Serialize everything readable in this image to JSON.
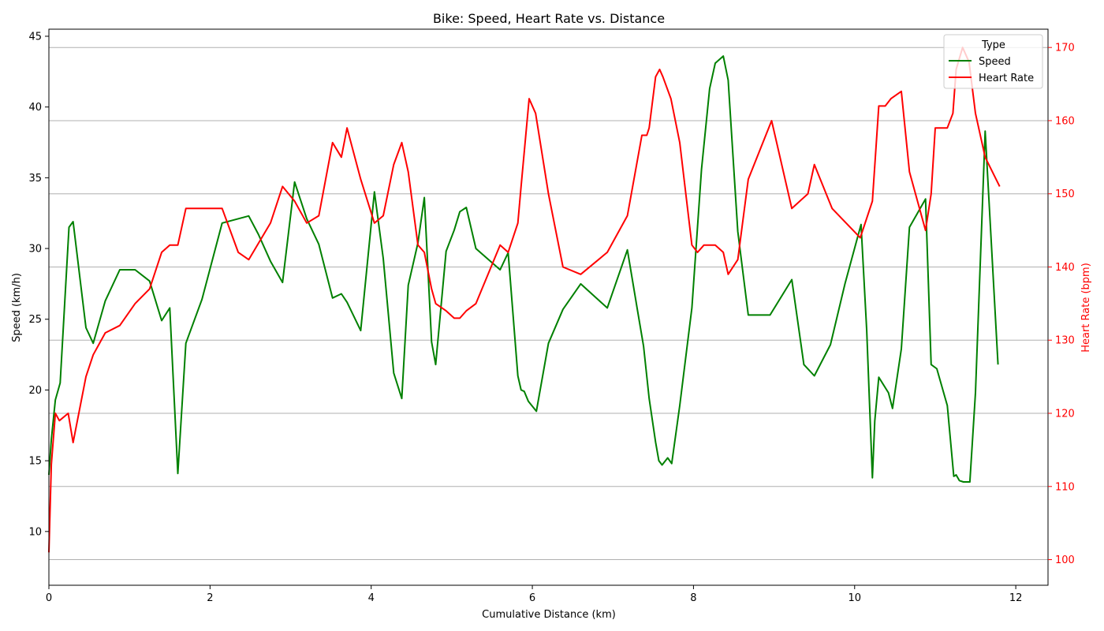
{
  "chart_data": {
    "type": "line",
    "title": "Bike: Speed, Heart Rate vs. Distance",
    "xlabel": "Cumulative Distance (km)",
    "ylabel": "Speed (km/h)",
    "y2label": "Heart Rate (bpm)",
    "xlim": [
      0,
      12.4
    ],
    "ylim": [
      6.2,
      45.5
    ],
    "y2lim": [
      96.5,
      172.5
    ],
    "x_ticks": [
      "0",
      "2",
      "4",
      "6",
      "8",
      "10",
      "12"
    ],
    "y_ticks": [
      "10",
      "15",
      "20",
      "25",
      "30",
      "35",
      "40",
      "45"
    ],
    "y2_ticks": [
      "100",
      "110",
      "120",
      "130",
      "140",
      "150",
      "160",
      "170"
    ],
    "grid": "horizontal lines at heart-rate ticks",
    "legend": {
      "title": "Type",
      "position": "top-right"
    },
    "colors": {
      "speed": "#008000",
      "heart_rate": "#ff0000"
    },
    "series": [
      {
        "name": "Speed",
        "axis": "left",
        "x": [
          0,
          0.03,
          0.08,
          0.14,
          0.25,
          0.3,
          0.46,
          0.55,
          0.7,
          0.88,
          1.07,
          1.25,
          1.4,
          1.5,
          1.6,
          1.7,
          1.9,
          2.15,
          2.48,
          2.6,
          2.75,
          2.9,
          3.05,
          3.2,
          3.35,
          3.52,
          3.63,
          3.7,
          3.87,
          4.04,
          4.15,
          4.28,
          4.38,
          4.46,
          4.58,
          4.66,
          4.75,
          4.8,
          4.93,
          5.03,
          5.1,
          5.18,
          5.3,
          5.6,
          5.7,
          5.82,
          5.86,
          5.9,
          5.95,
          6.05,
          6.2,
          6.38,
          6.6,
          6.93,
          7.18,
          7.3,
          7.38,
          7.45,
          7.53,
          7.57,
          7.61,
          7.68,
          7.73,
          7.83,
          7.98,
          8.1,
          8.2,
          8.27,
          8.37,
          8.43,
          8.55,
          8.68,
          8.95,
          9.22,
          9.37,
          9.5,
          9.7,
          9.88,
          10.08,
          10.15,
          10.22,
          10.25,
          10.3,
          10.42,
          10.47,
          10.58,
          10.68,
          10.88,
          10.95,
          11.02,
          11.15,
          11.23,
          11.26,
          11.3,
          11.35,
          11.43,
          11.5,
          11.62,
          11.78
        ],
        "y": [
          14,
          16.5,
          19.3,
          20.5,
          31.5,
          31.9,
          24.4,
          23.3,
          26.3,
          28.5,
          28.5,
          27.7,
          24.9,
          25.8,
          14.1,
          23.3,
          26.4,
          31.8,
          32.3,
          31,
          29.1,
          27.6,
          34.7,
          32.1,
          30.3,
          26.5,
          26.8,
          26.2,
          24.2,
          34,
          29.3,
          21.2,
          19.4,
          27.4,
          30.4,
          33.6,
          23.4,
          21.8,
          29.8,
          31.3,
          32.6,
          32.9,
          30,
          28.5,
          29.7,
          21,
          20,
          19.9,
          19.2,
          18.5,
          23.3,
          25.7,
          27.5,
          25.8,
          29.9,
          25.8,
          23.1,
          19.4,
          16.3,
          15,
          14.7,
          15.2,
          14.8,
          18.9,
          25.8,
          35.6,
          41.3,
          43.1,
          43.6,
          41.9,
          31.2,
          25.3,
          25.3,
          27.8,
          21.8,
          21,
          23.2,
          27.5,
          31.7,
          24.2,
          13.8,
          17.8,
          20.9,
          19.8,
          18.7,
          22.9,
          31.5,
          33.5,
          21.8,
          21.5,
          18.9,
          13.9,
          14,
          13.6,
          13.5,
          13.5,
          19.8,
          38.3,
          21.8
        ]
      },
      {
        "name": "Heart Rate",
        "axis": "right",
        "x": [
          0,
          0.03,
          0.08,
          0.13,
          0.24,
          0.3,
          0.46,
          0.55,
          0.7,
          0.88,
          1.07,
          1.25,
          1.4,
          1.5,
          1.6,
          1.7,
          1.9,
          2.15,
          2.35,
          2.48,
          2.75,
          2.9,
          3.05,
          3.2,
          3.35,
          3.52,
          3.63,
          3.7,
          3.87,
          4.04,
          4.15,
          4.28,
          4.38,
          4.46,
          4.58,
          4.66,
          4.75,
          4.8,
          4.93,
          5.03,
          5.1,
          5.18,
          5.3,
          5.6,
          5.7,
          5.82,
          5.86,
          5.96,
          6.04,
          6.2,
          6.38,
          6.6,
          6.93,
          7.18,
          7.36,
          7.42,
          7.45,
          7.53,
          7.58,
          7.62,
          7.72,
          7.83,
          7.98,
          8.05,
          8.13,
          8.2,
          8.27,
          8.37,
          8.43,
          8.55,
          8.68,
          8.97,
          9.22,
          9.42,
          9.5,
          9.72,
          10.07,
          10.22,
          10.3,
          10.38,
          10.45,
          10.58,
          10.68,
          10.88,
          10.95,
          11.0,
          11.15,
          11.22,
          11.26,
          11.34,
          11.42,
          11.5,
          11.62,
          11.8
        ],
        "y": [
          101,
          113,
          120,
          119,
          120,
          116,
          125,
          128,
          131,
          132,
          135,
          137,
          142,
          143,
          143,
          148,
          148,
          148,
          142,
          141,
          146,
          151,
          149,
          146,
          147,
          157,
          155,
          159,
          152,
          146,
          147,
          154,
          157,
          153,
          143,
          142,
          137,
          135,
          134,
          133,
          133,
          134,
          135,
          143,
          142,
          146,
          151,
          163,
          161,
          150,
          140,
          139,
          142,
          147,
          158,
          158,
          159,
          166,
          167,
          166,
          163,
          157,
          143,
          142,
          143,
          143,
          143,
          142,
          139,
          141,
          152,
          160,
          148,
          150,
          154,
          148,
          144,
          149,
          162,
          162,
          163,
          164,
          153,
          145,
          150,
          159,
          159,
          161,
          167,
          170,
          168,
          161,
          155,
          151
        ]
      }
    ]
  }
}
